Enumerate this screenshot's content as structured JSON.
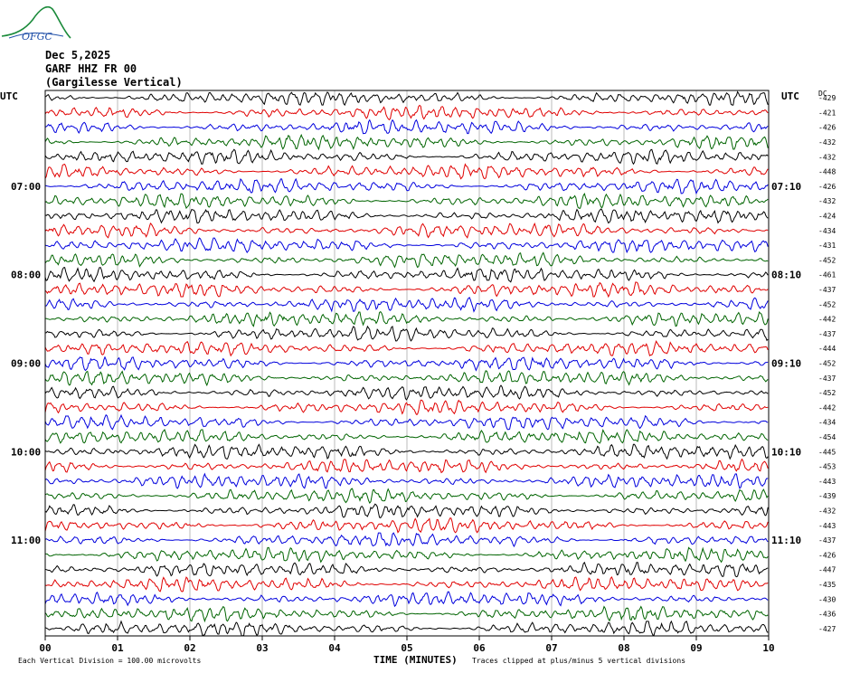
{
  "header": {
    "date": "Dec 5,2025",
    "station": "GARF HHZ FR 00",
    "site": "(Gargilesse Vertical)",
    "logo_text": "OFGC"
  },
  "colors": {
    "series": [
      "#000000",
      "#e00000",
      "#0000dd",
      "#006400"
    ],
    "grid": "#bbbbbb",
    "logo": "#1a8a3a",
    "logo_text": "#1f4fa8"
  },
  "chart_data": {
    "type": "line",
    "title": "",
    "xlabel": "TIME (MINUTES)",
    "ylabel": "",
    "xlim": [
      0,
      10
    ],
    "x_ticks": [
      "00",
      "01",
      "02",
      "03",
      "04",
      "05",
      "06",
      "07",
      "08",
      "09",
      "10"
    ],
    "left_axis_title": "UTC",
    "right_axis_title": "UTC",
    "dc_header": "DC",
    "left_hour_labels": [
      {
        "row": 6,
        "label": "07:00"
      },
      {
        "row": 12,
        "label": "08:00"
      },
      {
        "row": 18,
        "label": "09:00"
      },
      {
        "row": 24,
        "label": "10:00"
      },
      {
        "row": 30,
        "label": "11:00"
      }
    ],
    "right_hour_labels": [
      {
        "row": 6,
        "label": "07:10"
      },
      {
        "row": 12,
        "label": "08:10"
      },
      {
        "row": 18,
        "label": "09:10"
      },
      {
        "row": 24,
        "label": "10:10"
      },
      {
        "row": 30,
        "label": "11:10"
      }
    ],
    "dc_offsets": [
      "-429",
      "-421",
      "-426",
      "-432",
      "-432",
      "-448",
      "-426",
      "-432",
      "-424",
      "-434",
      "-431",
      "-452",
      "-461",
      "-437",
      "-452",
      "-442",
      "-437",
      "-444",
      "-452",
      "-437",
      "-452",
      "-442",
      "-434",
      "-454",
      "-445",
      "-453",
      "-443",
      "-439",
      "-432",
      "-443",
      "-437",
      "-426",
      "-447",
      "-435",
      "-430",
      "-436",
      "-427"
    ],
    "footer_left": "Each Vertical Division =  100.00 microvolts",
    "footer_right": "Traces clipped at plus/minus 5 vertical divisions"
  }
}
